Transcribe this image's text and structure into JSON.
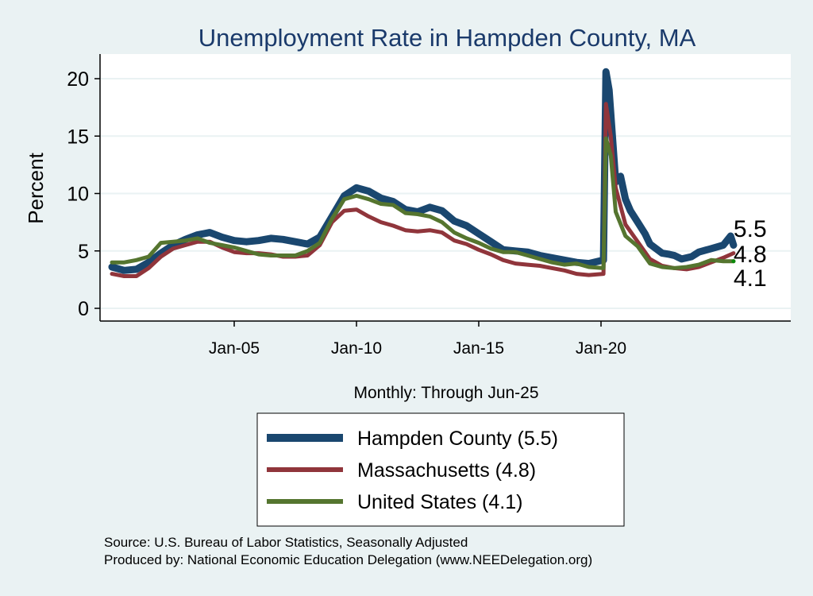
{
  "chart_data": {
    "type": "line",
    "title": "Unemployment Rate in Hampden  County, MA",
    "ylabel": "Percent",
    "xlabel": "Monthly: Through Jun-25",
    "ylim": [
      0,
      22
    ],
    "xlim": [
      1999.4,
      2028.3
    ],
    "yticks": [
      0,
      5,
      10,
      15,
      20
    ],
    "xticks": [
      {
        "label": "Jan-05",
        "value": 2005
      },
      {
        "label": "Jan-10",
        "value": 2010
      },
      {
        "label": "Jan-15",
        "value": 2015
      },
      {
        "label": "Jan-20",
        "value": 2020
      }
    ],
    "grid": true,
    "legend_position": "bottom",
    "series": [
      {
        "name": "Hampden  County (5.5)",
        "color": "#1a476f",
        "end_label": "5.5",
        "width": 9,
        "points": [
          [
            2000,
            3.6
          ],
          [
            2000.5,
            3.3
          ],
          [
            2001,
            3.4
          ],
          [
            2001.5,
            4.0
          ],
          [
            2002,
            4.8
          ],
          [
            2002.5,
            5.5
          ],
          [
            2003,
            6.0
          ],
          [
            2003.5,
            6.4
          ],
          [
            2004,
            6.6
          ],
          [
            2004.5,
            6.2
          ],
          [
            2005,
            5.9
          ],
          [
            2005.5,
            5.8
          ],
          [
            2006,
            5.9
          ],
          [
            2006.5,
            6.1
          ],
          [
            2007,
            6.0
          ],
          [
            2007.5,
            5.8
          ],
          [
            2008,
            5.6
          ],
          [
            2008.5,
            6.2
          ],
          [
            2009,
            8.0
          ],
          [
            2009.5,
            9.8
          ],
          [
            2010,
            10.5
          ],
          [
            2010.5,
            10.2
          ],
          [
            2011,
            9.6
          ],
          [
            2011.5,
            9.3
          ],
          [
            2012,
            8.6
          ],
          [
            2012.5,
            8.4
          ],
          [
            2013,
            8.8
          ],
          [
            2013.5,
            8.5
          ],
          [
            2014,
            7.6
          ],
          [
            2014.5,
            7.2
          ],
          [
            2015,
            6.5
          ],
          [
            2015.5,
            5.8
          ],
          [
            2016,
            5.1
          ],
          [
            2016.5,
            5.0
          ],
          [
            2017,
            4.9
          ],
          [
            2017.5,
            4.6
          ],
          [
            2018,
            4.4
          ],
          [
            2018.5,
            4.2
          ],
          [
            2019,
            4.0
          ],
          [
            2019.5,
            3.9
          ],
          [
            2020.1,
            4.2
          ],
          [
            2020.2,
            20.6
          ],
          [
            2020.33,
            19
          ],
          [
            2020.6,
            11
          ],
          [
            2020.8,
            11.5
          ],
          [
            2021,
            9.5
          ],
          [
            2021.2,
            8.5
          ],
          [
            2021.5,
            7.5
          ],
          [
            2021.8,
            6.5
          ],
          [
            2022,
            5.6
          ],
          [
            2022.5,
            4.8
          ],
          [
            2022.8,
            4.7
          ],
          [
            2023,
            4.6
          ],
          [
            2023.3,
            4.3
          ],
          [
            2023.7,
            4.5
          ],
          [
            2024,
            4.9
          ],
          [
            2024.5,
            5.2
          ],
          [
            2025,
            5.5
          ],
          [
            2025.3,
            6.3
          ],
          [
            2025.42,
            5.5
          ]
        ]
      },
      {
        "name": "Massachusetts (4.8)",
        "color": "#90353b",
        "end_label": "4.8",
        "width": 5,
        "points": [
          [
            2000,
            3.0
          ],
          [
            2000.5,
            2.8
          ],
          [
            2001,
            2.8
          ],
          [
            2001.5,
            3.5
          ],
          [
            2002,
            4.5
          ],
          [
            2002.5,
            5.2
          ],
          [
            2003,
            5.5
          ],
          [
            2003.5,
            5.8
          ],
          [
            2004,
            5.8
          ],
          [
            2004.5,
            5.3
          ],
          [
            2005,
            4.9
          ],
          [
            2005.5,
            4.8
          ],
          [
            2006,
            4.8
          ],
          [
            2006.5,
            4.7
          ],
          [
            2007,
            4.5
          ],
          [
            2007.5,
            4.5
          ],
          [
            2008,
            4.6
          ],
          [
            2008.5,
            5.5
          ],
          [
            2009,
            7.5
          ],
          [
            2009.5,
            8.5
          ],
          [
            2010,
            8.6
          ],
          [
            2010.5,
            8.0
          ],
          [
            2011,
            7.5
          ],
          [
            2011.5,
            7.2
          ],
          [
            2012,
            6.8
          ],
          [
            2012.5,
            6.7
          ],
          [
            2013,
            6.8
          ],
          [
            2013.5,
            6.6
          ],
          [
            2014,
            5.9
          ],
          [
            2014.5,
            5.6
          ],
          [
            2015,
            5.1
          ],
          [
            2015.5,
            4.7
          ],
          [
            2016,
            4.2
          ],
          [
            2016.5,
            3.9
          ],
          [
            2017,
            3.8
          ],
          [
            2017.5,
            3.7
          ],
          [
            2018,
            3.5
          ],
          [
            2018.5,
            3.3
          ],
          [
            2019,
            3.0
          ],
          [
            2019.5,
            2.9
          ],
          [
            2020.1,
            3.0
          ],
          [
            2020.2,
            17.8
          ],
          [
            2020.4,
            15
          ],
          [
            2020.6,
            10.5
          ],
          [
            2021,
            7.3
          ],
          [
            2021.5,
            5.8
          ],
          [
            2022,
            4.3
          ],
          [
            2022.5,
            3.7
          ],
          [
            2023,
            3.5
          ],
          [
            2023.5,
            3.4
          ],
          [
            2024,
            3.6
          ],
          [
            2024.5,
            4.0
          ],
          [
            2025,
            4.4
          ],
          [
            2025.42,
            4.8
          ]
        ]
      },
      {
        "name": "United States (4.1)",
        "color": "#55752f",
        "end_label": "4.1",
        "width": 5,
        "points": [
          [
            2000,
            4.0
          ],
          [
            2000.5,
            4.0
          ],
          [
            2001,
            4.2
          ],
          [
            2001.5,
            4.5
          ],
          [
            2002,
            5.7
          ],
          [
            2002.5,
            5.8
          ],
          [
            2003,
            5.9
          ],
          [
            2003.5,
            6.1
          ],
          [
            2004,
            5.7
          ],
          [
            2004.5,
            5.5
          ],
          [
            2005,
            5.3
          ],
          [
            2005.5,
            5.0
          ],
          [
            2006,
            4.7
          ],
          [
            2006.5,
            4.6
          ],
          [
            2007,
            4.6
          ],
          [
            2007.5,
            4.6
          ],
          [
            2008,
            5.0
          ],
          [
            2008.5,
            5.7
          ],
          [
            2009,
            7.8
          ],
          [
            2009.5,
            9.5
          ],
          [
            2010,
            9.8
          ],
          [
            2010.5,
            9.5
          ],
          [
            2011,
            9.1
          ],
          [
            2011.5,
            9.0
          ],
          [
            2012,
            8.3
          ],
          [
            2012.5,
            8.2
          ],
          [
            2013,
            8.0
          ],
          [
            2013.5,
            7.5
          ],
          [
            2014,
            6.6
          ],
          [
            2014.5,
            6.1
          ],
          [
            2015,
            5.7
          ],
          [
            2015.5,
            5.2
          ],
          [
            2016,
            4.9
          ],
          [
            2016.5,
            4.9
          ],
          [
            2017,
            4.6
          ],
          [
            2017.5,
            4.3
          ],
          [
            2018,
            4.0
          ],
          [
            2018.5,
            3.8
          ],
          [
            2019,
            3.9
          ],
          [
            2019.5,
            3.6
          ],
          [
            2020.1,
            3.5
          ],
          [
            2020.2,
            14.8
          ],
          [
            2020.4,
            13.3
          ],
          [
            2020.6,
            8.4
          ],
          [
            2021,
            6.3
          ],
          [
            2021.5,
            5.4
          ],
          [
            2022,
            3.9
          ],
          [
            2022.5,
            3.6
          ],
          [
            2023,
            3.5
          ],
          [
            2023.5,
            3.6
          ],
          [
            2024,
            3.8
          ],
          [
            2024.5,
            4.2
          ],
          [
            2025,
            4.1
          ],
          [
            2025.42,
            4.1
          ]
        ]
      }
    ],
    "notes": [
      "Source: U.S. Bureau of Labor Statistics, Seasonally Adjusted",
      "Produced by: National Economic Education Delegation (www.NEEDelegation.org)"
    ]
  }
}
